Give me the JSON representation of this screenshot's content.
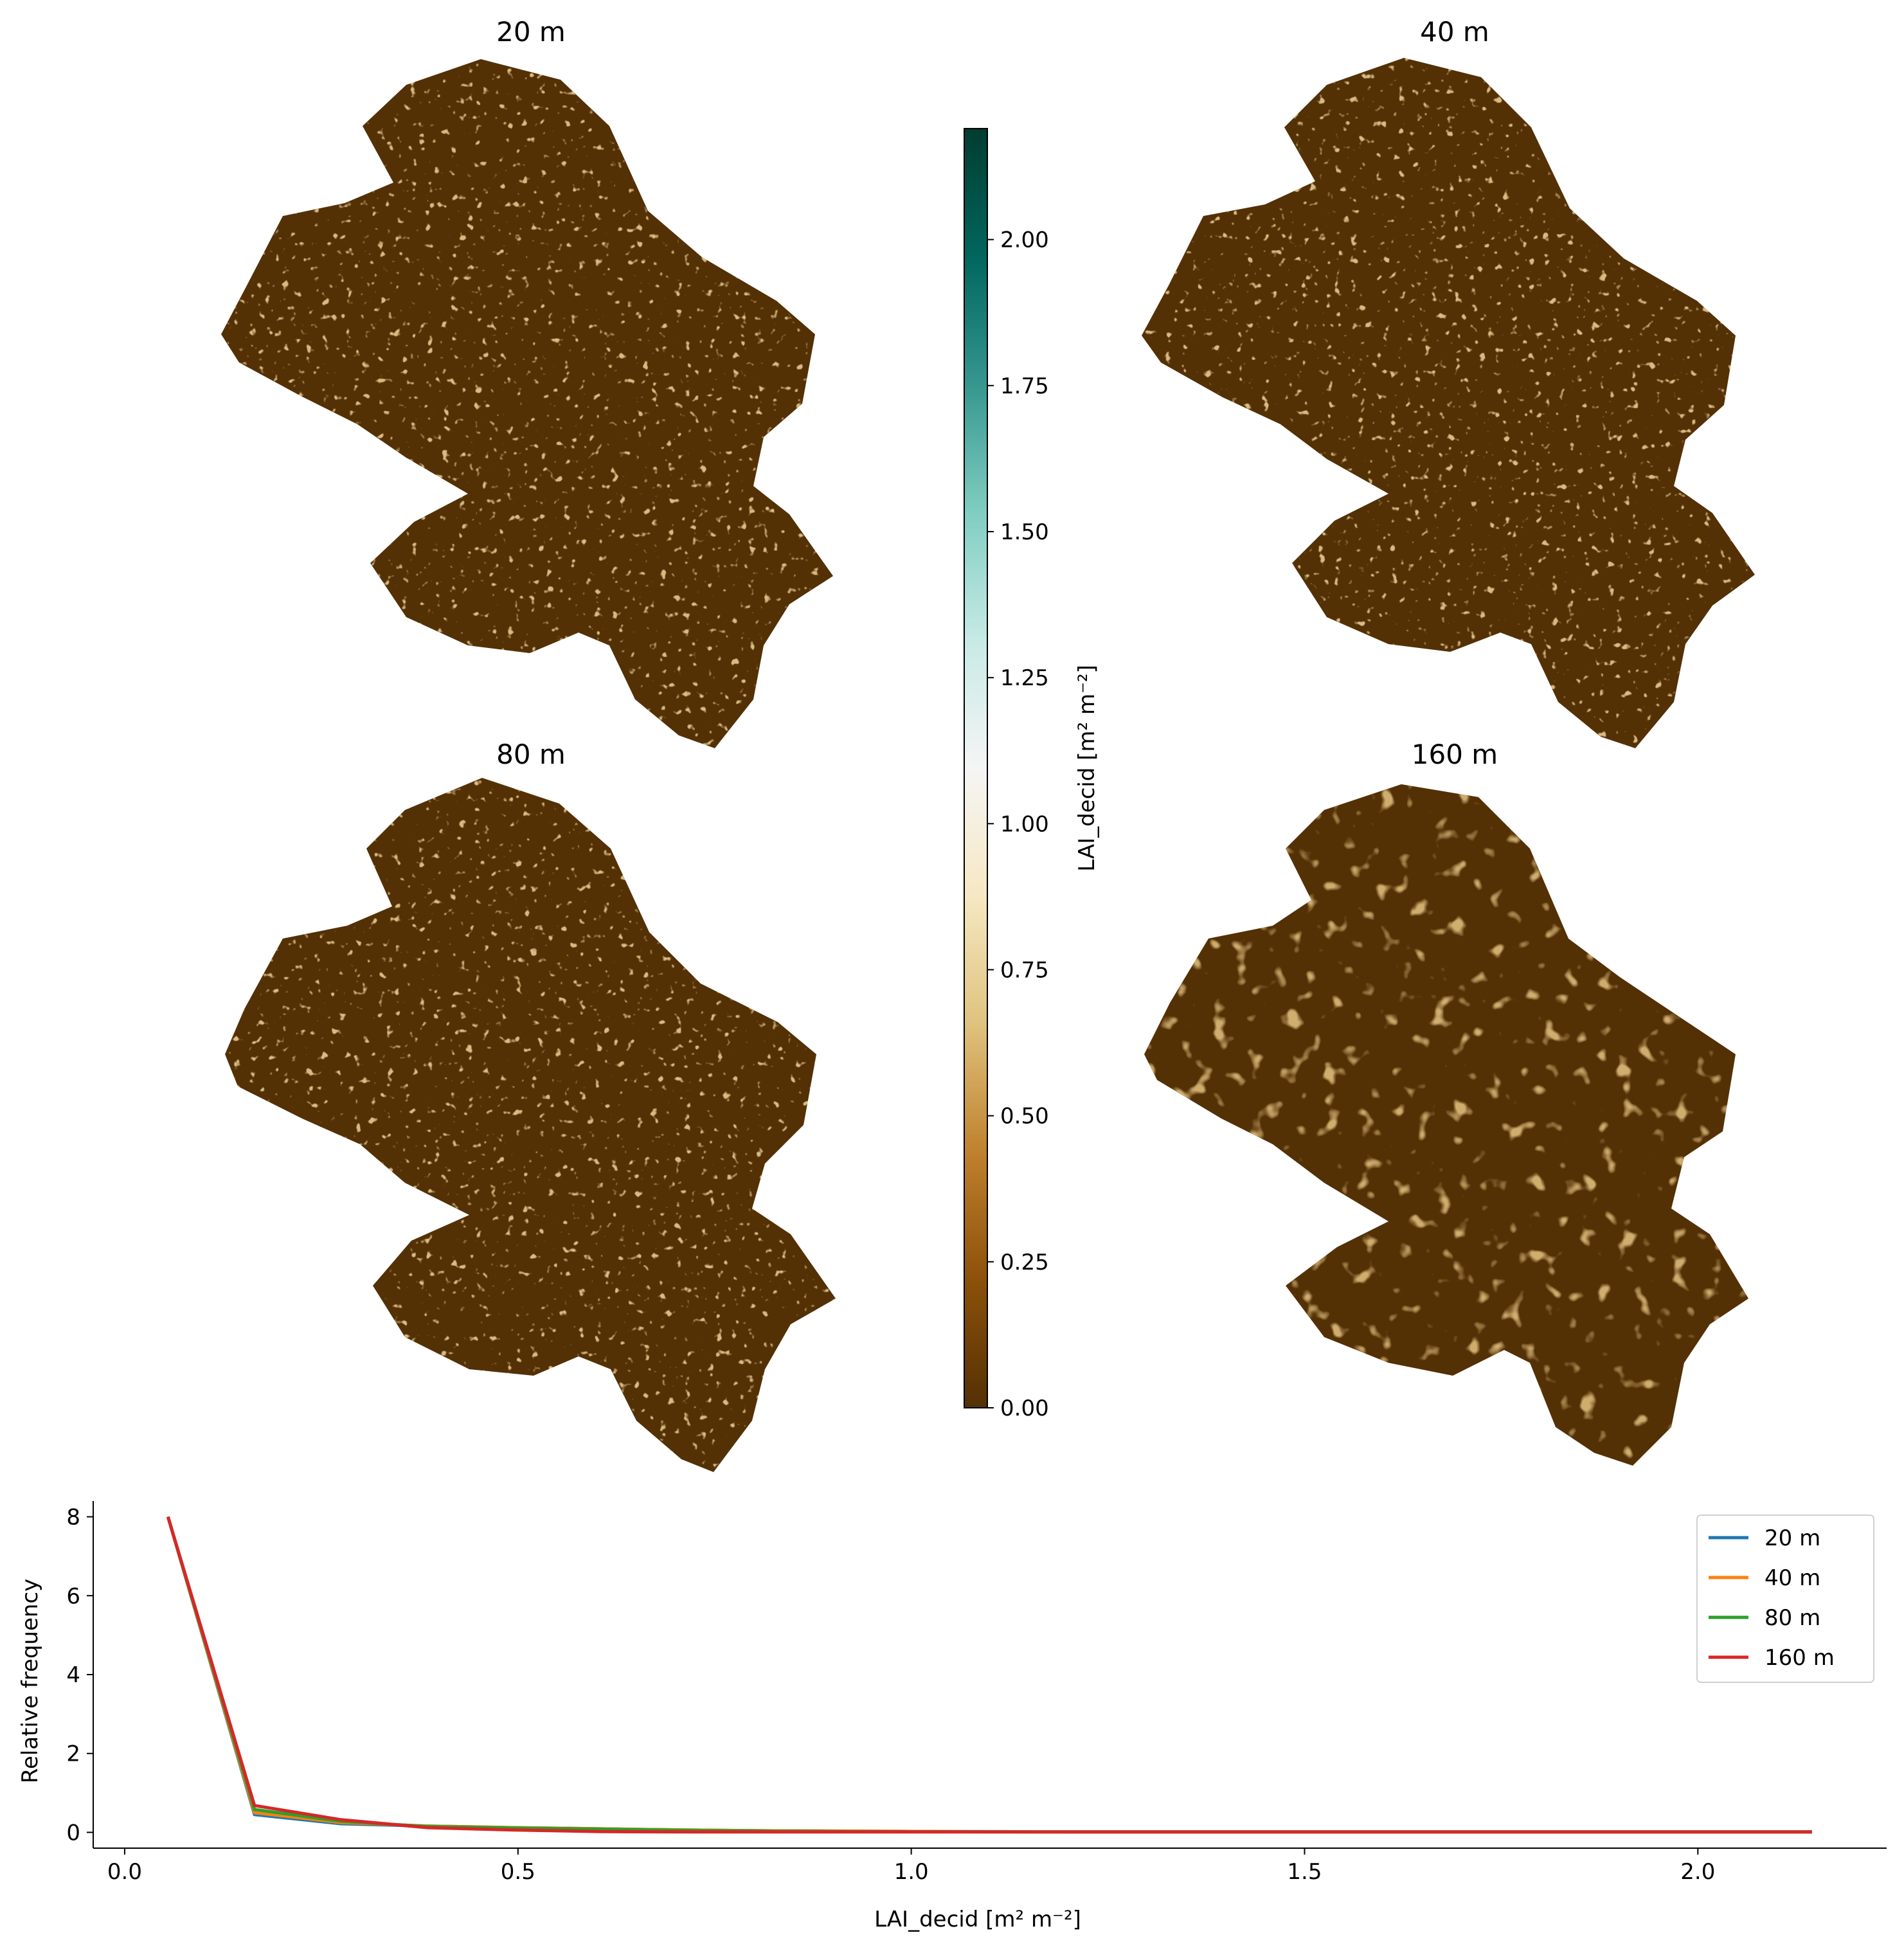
{
  "maps": [
    {
      "title": "20 m"
    },
    {
      "title": "40 m"
    },
    {
      "title": "80 m"
    },
    {
      "title": "160 m"
    }
  ],
  "colorbar": {
    "label": "LAI_decid [m² m⁻²]",
    "ticks": [
      "0.00",
      "0.25",
      "0.50",
      "0.75",
      "1.00",
      "1.25",
      "1.50",
      "1.75",
      "2.00"
    ],
    "range": [
      0,
      2.19
    ],
    "colormap": "BrBG",
    "colors": [
      "#543005",
      "#8c510a",
      "#bf812d",
      "#dfc27d",
      "#f6e8c3",
      "#f5f5f5",
      "#c7eae5",
      "#80cdc1",
      "#35978f",
      "#01665e",
      "#003c30"
    ]
  },
  "chart_data": {
    "type": "line",
    "xlabel": "LAI_decid [m² m⁻²]",
    "ylabel": "Relative frequency",
    "xlim": [
      -0.04,
      2.24
    ],
    "ylim": [
      -0.4,
      8.4
    ],
    "xticks": [
      "0.0",
      "0.5",
      "1.0",
      "1.5",
      "2.0"
    ],
    "yticks": [
      "0",
      "2",
      "4",
      "6",
      "8"
    ],
    "legend_position": "top-right",
    "x": [
      0.055,
      0.165,
      0.275,
      0.385,
      0.495,
      0.605,
      0.715,
      0.825,
      0.935,
      1.045,
      1.155,
      1.265,
      1.375,
      1.485,
      1.595,
      1.705,
      1.815,
      1.925,
      2.035,
      2.145
    ],
    "series": [
      {
        "name": "20 m",
        "color": "#1f77b4",
        "values": [
          8.0,
          0.45,
          0.22,
          0.16,
          0.12,
          0.09,
          0.06,
          0.04,
          0.03,
          0.02,
          0.015,
          0.01,
          0.01,
          0.01,
          0.01,
          0.01,
          0.01,
          0.01,
          0.01,
          0.01
        ]
      },
      {
        "name": "40 m",
        "color": "#ff7f0e",
        "values": [
          8.0,
          0.5,
          0.25,
          0.16,
          0.12,
          0.09,
          0.06,
          0.04,
          0.03,
          0.02,
          0.015,
          0.01,
          0.01,
          0.01,
          0.01,
          0.01,
          0.01,
          0.01,
          0.01,
          0.01
        ]
      },
      {
        "name": "80 m",
        "color": "#2ca02c",
        "values": [
          8.0,
          0.58,
          0.28,
          0.15,
          0.11,
          0.08,
          0.05,
          0.03,
          0.02,
          0.015,
          0.01,
          0.01,
          0.01,
          0.01,
          0.01,
          0.01,
          0.01,
          0.01,
          0.01,
          0.01
        ]
      },
      {
        "name": "160 m",
        "color": "#d62728",
        "values": [
          8.0,
          0.68,
          0.32,
          0.12,
          0.06,
          0.02,
          0.01,
          0.01,
          0.01,
          0.01,
          0.01,
          0.01,
          0.01,
          0.01,
          0.01,
          0.01,
          0.01,
          0.01,
          0.01,
          0.01
        ]
      }
    ]
  }
}
